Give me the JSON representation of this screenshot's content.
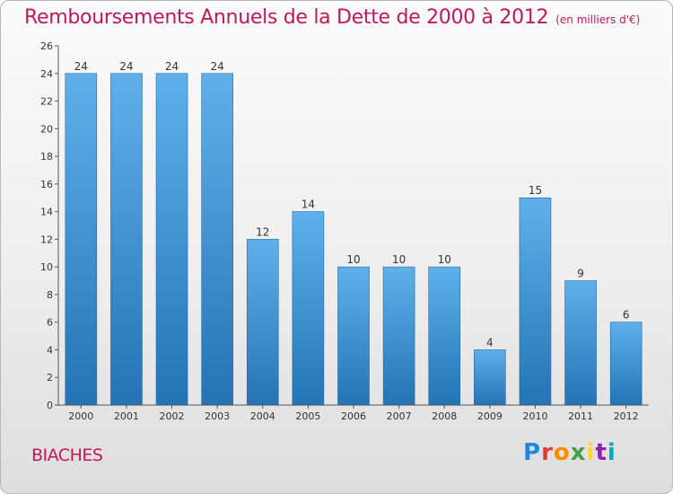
{
  "header": {
    "title": "Remboursements Annuels de la Dette de 2000 à 2012",
    "subtitle": "(en milliers d'€)"
  },
  "commune": "BIACHES",
  "logo": {
    "letters": [
      "P",
      "r",
      "o",
      "x",
      "i",
      "t",
      "i"
    ],
    "colors": [
      "#1e88e5",
      "#e53935",
      "#fb8c00",
      "#43a047",
      "#fdd835",
      "#8e24aa",
      "#00acc1"
    ]
  },
  "colors": {
    "bar_top": "#5fb0ea",
    "bar_bottom": "#2474b5",
    "axis": "#555555",
    "title": "#c2185b"
  },
  "chart_data": {
    "type": "bar",
    "title": "Remboursements Annuels de la Dette de 2000 à 2012",
    "subtitle": "(en milliers d'€)",
    "categories": [
      "2000",
      "2001",
      "2002",
      "2003",
      "2004",
      "2005",
      "2006",
      "2007",
      "2008",
      "2009",
      "2010",
      "2011",
      "2012"
    ],
    "values": [
      24,
      24,
      24,
      24,
      12,
      14,
      10,
      10,
      10,
      4,
      15,
      9,
      6
    ],
    "ylim": [
      0,
      26
    ],
    "yticks": [
      0,
      2,
      4,
      6,
      8,
      10,
      12,
      14,
      16,
      18,
      20,
      22,
      24,
      26
    ],
    "xlabel": "",
    "ylabel": "",
    "grid": false,
    "data_labels": true
  }
}
